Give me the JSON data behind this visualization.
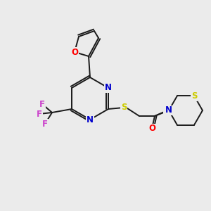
{
  "background_color": "#ebebeb",
  "bond_color": "#1a1a1a",
  "atom_colors": {
    "O": "#ff0000",
    "N": "#0000cc",
    "S": "#cccc00",
    "F": "#cc44cc",
    "C": "#1a1a1a"
  },
  "font_size": 8.5,
  "lw": 1.4
}
